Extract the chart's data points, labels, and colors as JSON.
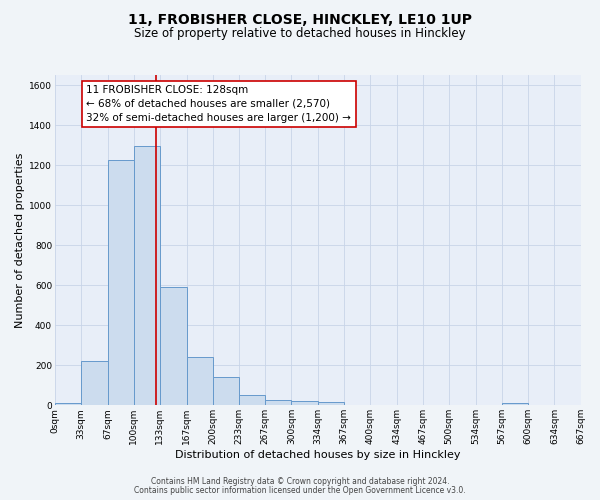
{
  "title_line1": "11, FROBISHER CLOSE, HINCKLEY, LE10 1UP",
  "title_line2": "Size of property relative to detached houses in Hinckley",
  "xlabel": "Distribution of detached houses by size in Hinckley",
  "ylabel": "Number of detached properties",
  "bar_edges": [
    0,
    33,
    67,
    100,
    133,
    167,
    200,
    233,
    267,
    300,
    334,
    367,
    400,
    434,
    467,
    500,
    534,
    567,
    600,
    634,
    667
  ],
  "bar_heights": [
    10,
    220,
    1225,
    1295,
    590,
    240,
    140,
    50,
    25,
    20,
    15,
    0,
    0,
    0,
    0,
    0,
    0,
    10,
    0,
    0
  ],
  "bar_color": "#ccdcee",
  "bar_edge_color": "#6699cc",
  "vline_x": 128,
  "vline_color": "#cc0000",
  "ylim": [
    0,
    1650
  ],
  "yticks": [
    0,
    200,
    400,
    600,
    800,
    1000,
    1200,
    1400,
    1600
  ],
  "xtick_labels": [
    "0sqm",
    "33sqm",
    "67sqm",
    "100sqm",
    "133sqm",
    "167sqm",
    "200sqm",
    "233sqm",
    "267sqm",
    "300sqm",
    "334sqm",
    "367sqm",
    "400sqm",
    "434sqm",
    "467sqm",
    "500sqm",
    "534sqm",
    "567sqm",
    "600sqm",
    "634sqm",
    "667sqm"
  ],
  "annotation_title": "11 FROBISHER CLOSE: 128sqm",
  "annotation_line2": "← 68% of detached houses are smaller (2,570)",
  "annotation_line3": "32% of semi-detached houses are larger (1,200) →",
  "grid_color": "#c8d4e8",
  "bg_color": "#e8eef8",
  "footer_line1": "Contains HM Land Registry data © Crown copyright and database right 2024.",
  "footer_line2": "Contains public sector information licensed under the Open Government Licence v3.0.",
  "title_fontsize": 10,
  "subtitle_fontsize": 8.5,
  "axis_label_fontsize": 8,
  "tick_fontsize": 6.5,
  "annotation_fontsize": 7.5,
  "footer_fontsize": 5.5
}
